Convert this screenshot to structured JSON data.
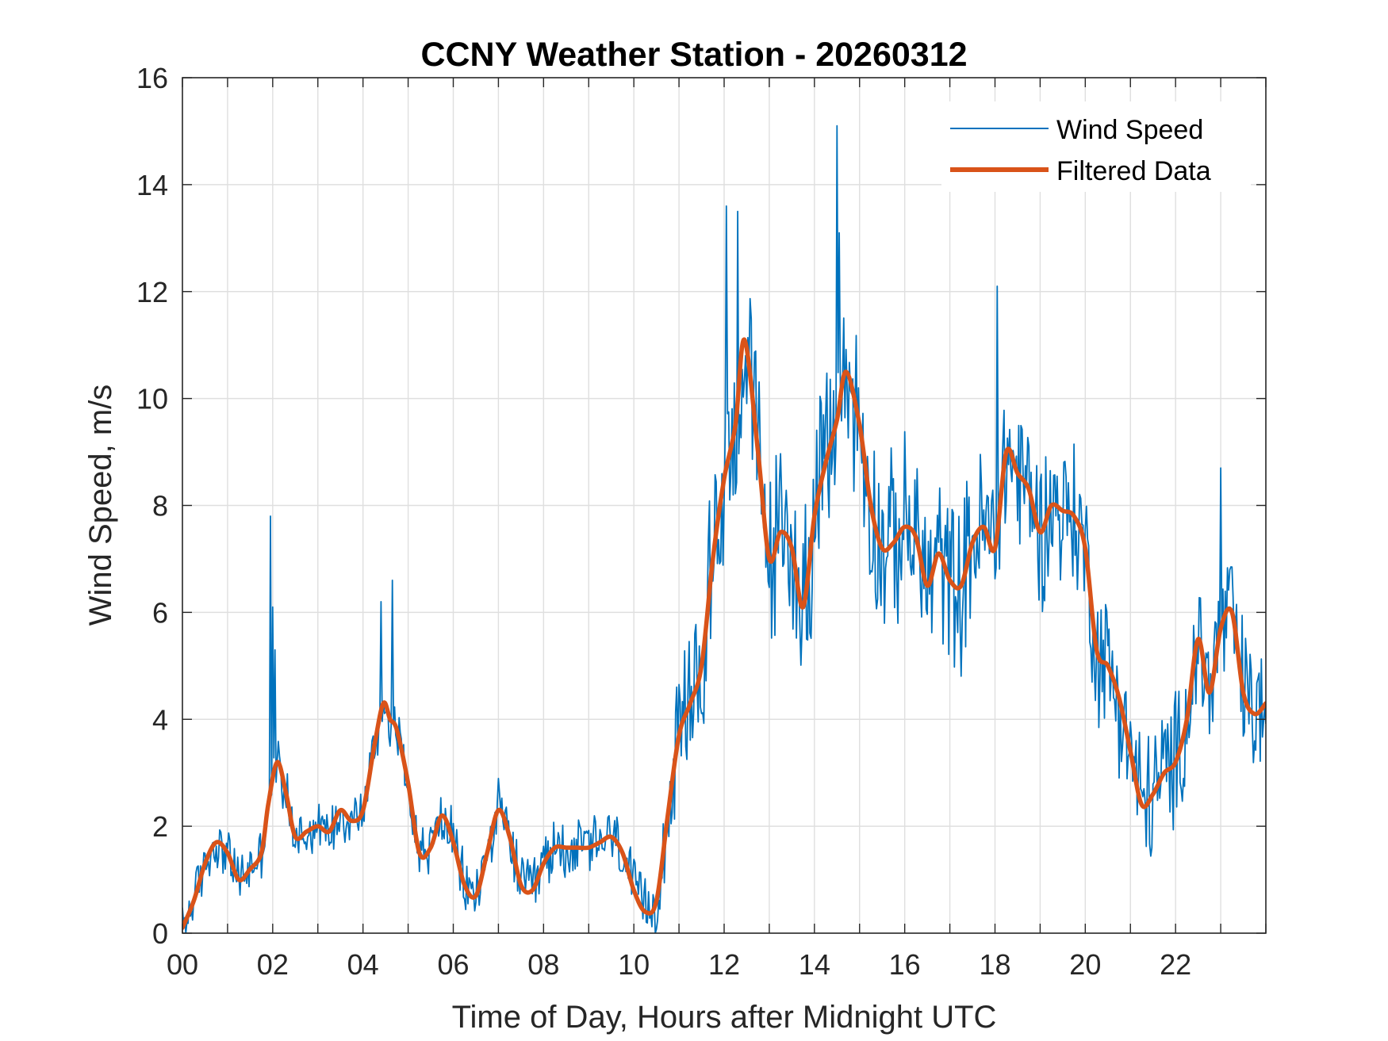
{
  "chart_data": {
    "type": "line",
    "title": "CCNY Weather Station - 20260312",
    "xlabel": "Time of Day, Hours after Midnight UTC",
    "ylabel": "Wind Speed, m/s",
    "xlim": [
      0,
      24
    ],
    "ylim": [
      0,
      16
    ],
    "grid": true,
    "legend_position": "top-right",
    "x_ticks": [
      0,
      2,
      4,
      6,
      8,
      10,
      12,
      14,
      16,
      18,
      20,
      22
    ],
    "x_tick_labels": [
      "00",
      "02",
      "04",
      "06",
      "08",
      "10",
      "12",
      "14",
      "16",
      "18",
      "20",
      "22"
    ],
    "x_minor_grid_step": 1,
    "y_ticks": [
      0,
      2,
      4,
      6,
      8,
      10,
      12,
      14,
      16
    ],
    "y_tick_labels": [
      "0",
      "2",
      "4",
      "6",
      "8",
      "10",
      "12",
      "14",
      "16"
    ],
    "raw_sample_step_hours": 0.025,
    "series": [
      {
        "name": "Wind Speed",
        "color": "#0072BD",
        "style": "thin",
        "noise_amplitude": [
          [
            0,
            0.55
          ],
          [
            5,
            0.6
          ],
          [
            10.5,
            0.7
          ],
          [
            11.5,
            2.0
          ],
          [
            15,
            2.0
          ],
          [
            20,
            1.6
          ],
          [
            22,
            1.5
          ],
          [
            24,
            1.5
          ]
        ],
        "spikes": [
          {
            "x": 1.95,
            "y": 7.8
          },
          {
            "x": 2.0,
            "y": 6.1
          },
          {
            "x": 2.05,
            "y": 5.3
          },
          {
            "x": 4.4,
            "y": 6.2
          },
          {
            "x": 4.65,
            "y": 6.6
          },
          {
            "x": 12.05,
            "y": 13.6
          },
          {
            "x": 12.3,
            "y": 13.5
          },
          {
            "x": 14.5,
            "y": 15.1
          },
          {
            "x": 14.55,
            "y": 13.1
          },
          {
            "x": 18.05,
            "y": 12.1
          },
          {
            "x": 23.0,
            "y": 8.7
          }
        ]
      },
      {
        "name": "Filtered Data",
        "color": "#D95319",
        "style": "thick",
        "x": [
          0,
          0.25,
          0.5,
          0.75,
          1.0,
          1.25,
          1.5,
          1.75,
          1.9,
          2.1,
          2.3,
          2.5,
          2.75,
          3.0,
          3.25,
          3.5,
          3.75,
          4.0,
          4.25,
          4.45,
          4.6,
          4.75,
          5.0,
          5.25,
          5.5,
          5.75,
          6.0,
          6.25,
          6.5,
          6.75,
          7.0,
          7.25,
          7.5,
          7.75,
          8.0,
          8.25,
          8.5,
          8.75,
          9.0,
          9.25,
          9.5,
          9.75,
          10.0,
          10.25,
          10.5,
          10.75,
          11.0,
          11.25,
          11.5,
          11.75,
          12.0,
          12.25,
          12.45,
          12.75,
          13.0,
          13.25,
          13.5,
          13.75,
          14.0,
          14.25,
          14.5,
          14.7,
          15.0,
          15.25,
          15.5,
          15.75,
          16.0,
          16.25,
          16.5,
          16.75,
          17.0,
          17.25,
          17.5,
          17.75,
          18.0,
          18.25,
          18.5,
          18.75,
          19.0,
          19.25,
          19.5,
          19.75,
          20.0,
          20.25,
          20.5,
          20.75,
          21.0,
          21.25,
          21.5,
          21.75,
          22.0,
          22.25,
          22.5,
          22.75,
          23.0,
          23.25,
          23.5,
          23.75,
          24.0
        ],
        "values": [
          0.1,
          0.6,
          1.3,
          1.7,
          1.5,
          1.0,
          1.2,
          1.5,
          2.4,
          3.2,
          2.6,
          1.8,
          1.9,
          2.0,
          1.9,
          2.3,
          2.1,
          2.3,
          3.5,
          4.3,
          4.0,
          3.8,
          2.8,
          1.5,
          1.6,
          2.2,
          1.7,
          0.9,
          0.7,
          1.5,
          2.3,
          1.8,
          0.9,
          0.8,
          1.3,
          1.6,
          1.6,
          1.6,
          1.6,
          1.7,
          1.8,
          1.5,
          0.8,
          0.4,
          0.6,
          2.2,
          3.7,
          4.3,
          5.0,
          7.0,
          8.5,
          9.5,
          11.1,
          9.0,
          7.0,
          7.5,
          7.2,
          6.1,
          7.8,
          8.8,
          9.6,
          10.5,
          9.5,
          8.0,
          7.2,
          7.3,
          7.6,
          7.4,
          6.5,
          7.1,
          6.6,
          6.5,
          7.3,
          7.6,
          7.2,
          9.0,
          8.6,
          8.3,
          7.5,
          8.0,
          7.9,
          7.8,
          7.2,
          5.3,
          5.0,
          4.4,
          3.4,
          2.4,
          2.6,
          3.0,
          3.2,
          4.0,
          5.5,
          4.5,
          5.7,
          6.0,
          4.5,
          4.1,
          4.3
        ]
      }
    ]
  }
}
